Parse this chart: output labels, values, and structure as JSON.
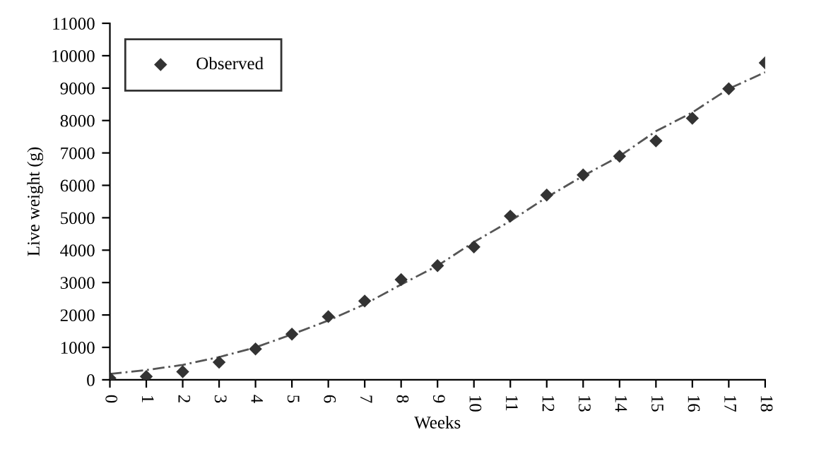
{
  "chart_data": {
    "type": "scatter",
    "xlabel": "Weeks",
    "ylabel": "Live weight (g)",
    "x": [
      0,
      1,
      2,
      3,
      4,
      5,
      6,
      7,
      8,
      9,
      10,
      11,
      12,
      13,
      14,
      15,
      16,
      17,
      18
    ],
    "series": [
      {
        "name": "Observed",
        "color": "#333333",
        "marker": "diamond",
        "values": [
          50,
          100,
          250,
          540,
          950,
          1410,
          1950,
          2430,
          3090,
          3520,
          4100,
          5050,
          5700,
          6320,
          6900,
          7370,
          8070,
          8980,
          9780
        ]
      },
      {
        "type": "line",
        "color": "#555555",
        "line_style": "dashed",
        "marker": "none",
        "values": [
          180,
          300,
          460,
          700,
          1000,
          1400,
          1830,
          2330,
          2940,
          3520,
          4250,
          4900,
          5630,
          6290,
          6900,
          7670,
          8250,
          8980,
          9490
        ]
      }
    ],
    "xlim": [
      0,
      18
    ],
    "xticks": [
      0,
      1,
      2,
      3,
      4,
      5,
      6,
      7,
      8,
      9,
      10,
      11,
      12,
      13,
      14,
      15,
      16,
      17,
      18
    ],
    "ylim": [
      0,
      11000
    ],
    "yticks": [
      0,
      1000,
      2000,
      3000,
      4000,
      5000,
      6000,
      7000,
      8000,
      9000,
      10000,
      11000
    ],
    "grid": false,
    "legend": "top left"
  }
}
